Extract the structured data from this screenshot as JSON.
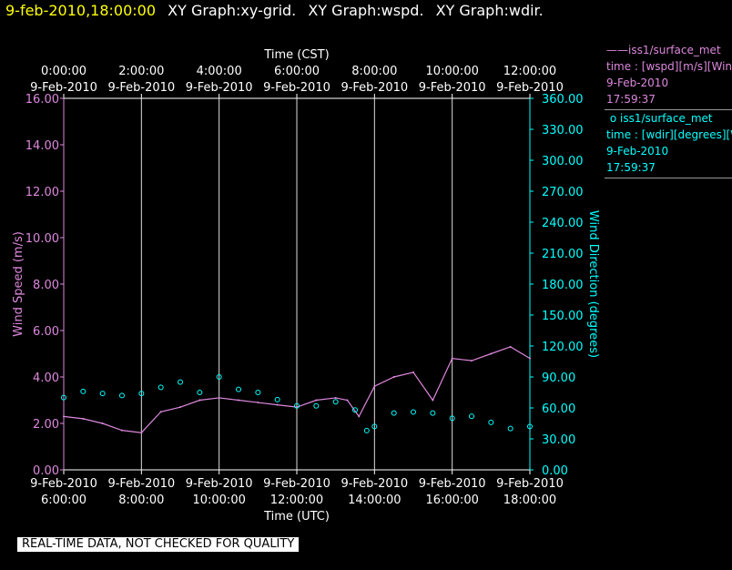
{
  "header": {
    "timestamp": "9-feb-2010,18:00:00",
    "graphs": [
      "XY Graph:xy-grid.",
      "XY Graph:wspd.",
      "XY Graph:wdir."
    ]
  },
  "legend": [
    {
      "name": "iss1/surface_met",
      "marker": "line",
      "color": "#dd88dd",
      "line1": "time : [wspd][m/s][Wind Speed]",
      "date": "9-Feb-2010",
      "time": "17:59:37"
    },
    {
      "name": "iss1/surface_met",
      "marker": "circle",
      "color": "#00ffff",
      "line1": "time : [wdir][degrees][Wind Direction]",
      "date": "9-Feb-2010",
      "time": "17:59:37"
    }
  ],
  "footer": {
    "qc_notice": "REAL-TIME DATA, NOT CHECKED FOR QUALITY"
  },
  "colors": {
    "background": "#000000",
    "axis": "#ffffff",
    "wind_speed": "#dd88dd",
    "wind_direction": "#00ffff"
  },
  "chart_data": {
    "type": "line",
    "top_axis_title": "Time (CST)",
    "bottom_axis_title": "Time (UTC)",
    "x_range_utc_hours": [
      6,
      18
    ],
    "top_ticks": [
      {
        "time": "0:00:00",
        "date": "9-Feb-2010"
      },
      {
        "time": "2:00:00",
        "date": "9-Feb-2010"
      },
      {
        "time": "4:00:00",
        "date": "9-Feb-2010"
      },
      {
        "time": "6:00:00",
        "date": "9-Feb-2010"
      },
      {
        "time": "8:00:00",
        "date": "9-Feb-2010"
      },
      {
        "time": "10:00:00",
        "date": "9-Feb-2010"
      },
      {
        "time": "12:00:00",
        "date": "9-Feb-2010"
      }
    ],
    "bottom_ticks": [
      {
        "time": "6:00:00",
        "date": "9-Feb-2010"
      },
      {
        "time": "8:00:00",
        "date": "9-Feb-2010"
      },
      {
        "time": "10:00:00",
        "date": "9-Feb-2010"
      },
      {
        "time": "12:00:00",
        "date": "9-Feb-2010"
      },
      {
        "time": "14:00:00",
        "date": "9-Feb-2010"
      },
      {
        "time": "16:00:00",
        "date": "9-Feb-2010"
      },
      {
        "time": "18:00:00",
        "date": "9-Feb-2010"
      }
    ],
    "y_left": {
      "label": "Wind Speed (m/s)",
      "range": [
        0,
        16
      ],
      "ticks": [
        "0.00",
        "2.00",
        "4.00",
        "6.00",
        "8.00",
        "10.00",
        "12.00",
        "14.00",
        "16.00"
      ]
    },
    "y_right": {
      "label": "Wind Direction (degrees)",
      "range": [
        0,
        360
      ],
      "ticks": [
        "0.00",
        "30.00",
        "60.00",
        "90.00",
        "120.00",
        "150.00",
        "180.00",
        "210.00",
        "240.00",
        "270.00",
        "300.00",
        "330.00",
        "360.00"
      ]
    },
    "vertical_grid": true,
    "series": [
      {
        "name": "iss1/surface_met",
        "axis": "left",
        "style": "line",
        "x_utc_hours": [
          6.0,
          6.5,
          7.0,
          7.5,
          8.0,
          8.5,
          9.0,
          9.5,
          10.0,
          10.5,
          11.0,
          11.5,
          12.0,
          12.5,
          13.0,
          13.3,
          13.6,
          14.0,
          14.5,
          15.0,
          15.5,
          16.0,
          16.5,
          17.0,
          17.5,
          18.0
        ],
        "values": [
          2.3,
          2.2,
          2.0,
          1.7,
          1.6,
          2.5,
          2.7,
          3.0,
          3.1,
          3.0,
          2.9,
          2.8,
          2.7,
          3.0,
          3.1,
          3.0,
          2.3,
          3.6,
          4.0,
          4.2,
          3.0,
          4.8,
          4.7,
          5.0,
          5.3,
          4.8
        ]
      },
      {
        "name": "iss1/surface_met",
        "axis": "right",
        "style": "markers",
        "x_utc_hours": [
          6.0,
          6.5,
          7.0,
          7.5,
          8.0,
          8.5,
          9.0,
          9.5,
          10.0,
          10.5,
          11.0,
          11.5,
          12.0,
          12.5,
          13.0,
          13.5,
          13.8,
          14.0,
          14.5,
          15.0,
          15.5,
          16.0,
          16.5,
          17.0,
          17.5,
          18.0
        ],
        "values": [
          70,
          76,
          74,
          72,
          74,
          80,
          85,
          75,
          90,
          78,
          75,
          68,
          62,
          62,
          66,
          58,
          38,
          42,
          55,
          56,
          55,
          50,
          52,
          46,
          40,
          42
        ]
      }
    ]
  }
}
